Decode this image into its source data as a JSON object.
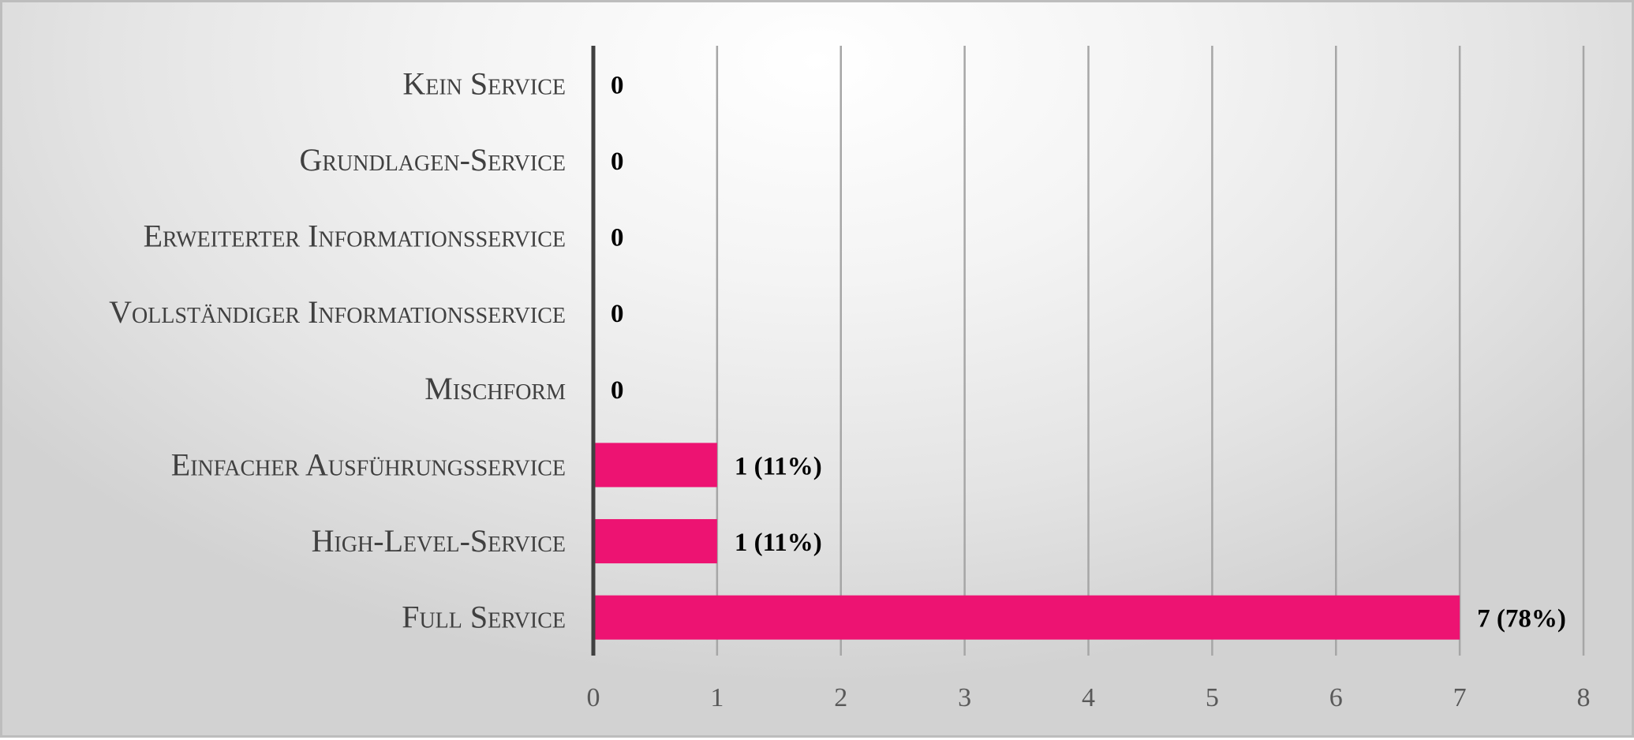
{
  "chart_data": {
    "type": "bar",
    "orientation": "horizontal",
    "categories": [
      "Kein Service",
      "Grundlagen-Service",
      "Erweiterter Informationsservice",
      "Vollständiger Informationsservice",
      "Mischform",
      "Einfacher Ausführungsservice",
      "High-Level-Service",
      "Full Service"
    ],
    "values": [
      0,
      0,
      0,
      0,
      0,
      1,
      1,
      7
    ],
    "data_labels": [
      "0",
      "0",
      "0",
      "0",
      "0",
      "1 (11%)",
      "1 (11%)",
      "7 (78%)"
    ],
    "xlim": [
      0,
      8
    ],
    "x_ticks": [
      "0",
      "1",
      "2",
      "3",
      "4",
      "5",
      "6",
      "7",
      "8"
    ],
    "grid": "vertical",
    "legend": "none",
    "bar_color": "#ED1372",
    "axis_color": "#404040",
    "grid_color": "#A6A6A6"
  }
}
